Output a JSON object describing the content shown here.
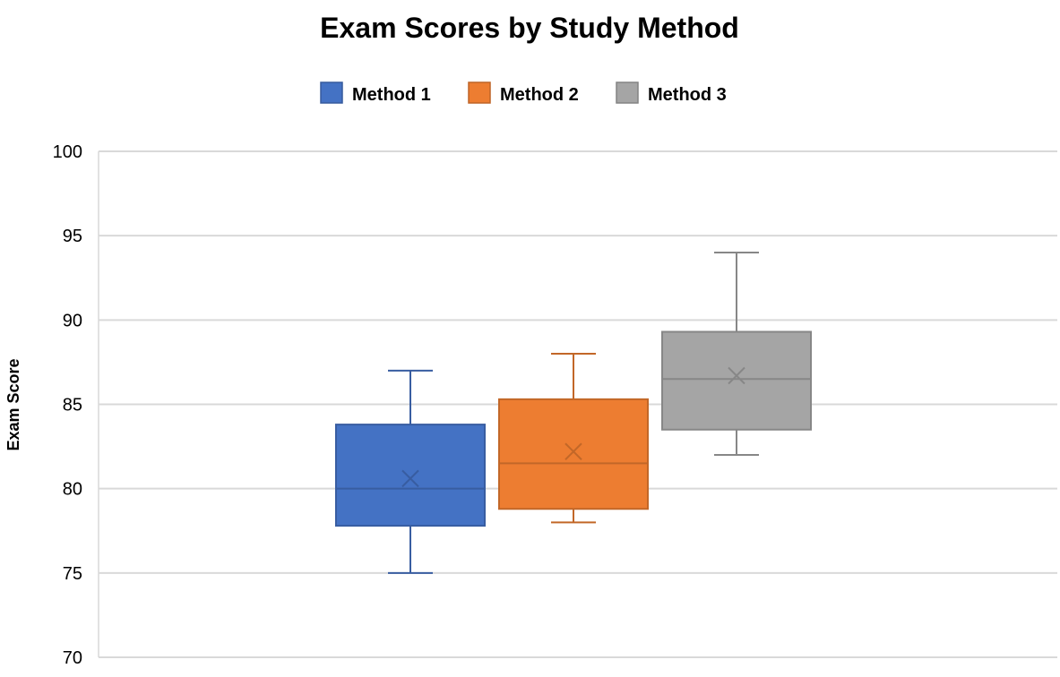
{
  "chart_data": {
    "type": "boxplot",
    "title": "Exam Scores by Study Method",
    "xlabel": "",
    "ylabel": "Exam Score",
    "ylim": [
      70,
      100
    ],
    "yticks": [
      "70",
      "75",
      "80",
      "85",
      "90",
      "95",
      "100"
    ],
    "grid": true,
    "legend_position": "top",
    "series": [
      {
        "name": "Method 1",
        "color": "#4472C4",
        "min": 75,
        "q1": 77.8,
        "median": 80,
        "q3": 83.8,
        "max": 87,
        "mean": 80.6
      },
      {
        "name": "Method 2",
        "color": "#ED7D31",
        "min": 78,
        "q1": 78.8,
        "median": 81.5,
        "q3": 85.3,
        "max": 88,
        "mean": 82.2
      },
      {
        "name": "Method 3",
        "color": "#A5A5A5",
        "min": 82,
        "q1": 83.5,
        "median": 86.5,
        "q3": 89.3,
        "max": 94,
        "mean": 86.7
      }
    ]
  }
}
